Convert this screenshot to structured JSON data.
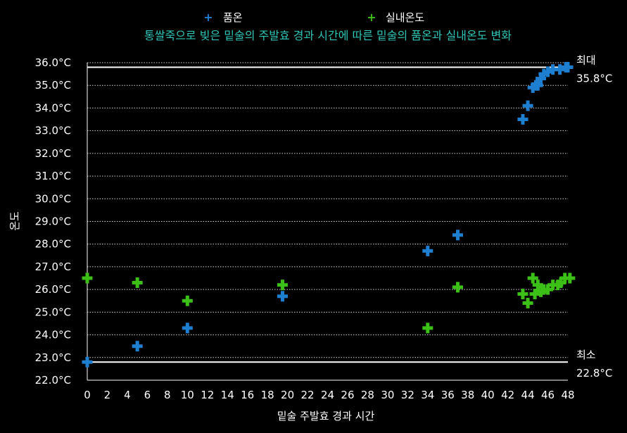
{
  "chart_data": {
    "type": "scatter",
    "title": "통쌀죽으로 빚은 밑술의 주발효 경과 시간에 따른 밑술의 품온과 실내온도 변화",
    "xlabel": "밑술 주발효 경과 시간",
    "ylabel": "온도",
    "xlim": [
      0,
      48
    ],
    "ylim": [
      22.0,
      36.0
    ],
    "x_ticks": [
      0,
      2,
      4,
      6,
      8,
      10,
      12,
      14,
      16,
      18,
      20,
      22,
      24,
      26,
      28,
      30,
      32,
      34,
      36,
      38,
      40,
      42,
      44,
      46,
      48
    ],
    "y_ticks": [
      22.0,
      23.0,
      24.0,
      25.0,
      26.0,
      27.0,
      28.0,
      29.0,
      30.0,
      31.0,
      32.0,
      33.0,
      34.0,
      35.0,
      36.0
    ],
    "y_tick_suffix": "°C",
    "grid": "horizontal-dotted",
    "legend_position": "top",
    "colors": {
      "background": "#000000",
      "title": "#2ec4b6",
      "품온": "#1e7fd0",
      "실내온도": "#3cc018",
      "reference_line": "#ffffff"
    },
    "series": [
      {
        "name": "품온",
        "marker": "plus",
        "x": [
          0,
          5,
          10,
          19.5,
          34,
          37,
          43.5,
          44,
          44.5,
          44.8,
          45,
          45.3,
          45.6,
          46,
          46.5,
          47.2,
          47.8,
          48
        ],
        "y": [
          22.8,
          23.5,
          24.3,
          25.7,
          27.7,
          28.4,
          33.5,
          34.1,
          34.9,
          35.0,
          35.0,
          35.3,
          35.5,
          35.6,
          35.7,
          35.7,
          35.8,
          35.8
        ]
      },
      {
        "name": "실내온도",
        "marker": "plus",
        "x": [
          0,
          5,
          10,
          19.5,
          34,
          37,
          43.5,
          44,
          44.5,
          44.7,
          45,
          45.3,
          45.6,
          46,
          46.5,
          47,
          47.3,
          47.7,
          48.2
        ],
        "y": [
          26.5,
          26.3,
          25.5,
          26.2,
          24.3,
          26.1,
          25.8,
          25.4,
          26.5,
          25.8,
          26.2,
          25.9,
          26.0,
          26.0,
          26.2,
          26.2,
          26.3,
          26.5,
          26.5
        ]
      }
    ],
    "reference_lines": [
      {
        "y": 35.8,
        "label_line1": "최대",
        "label_line2": "35.8°C"
      },
      {
        "y": 22.8,
        "label_line1": "최소",
        "label_line2": "22.8°C"
      }
    ]
  }
}
